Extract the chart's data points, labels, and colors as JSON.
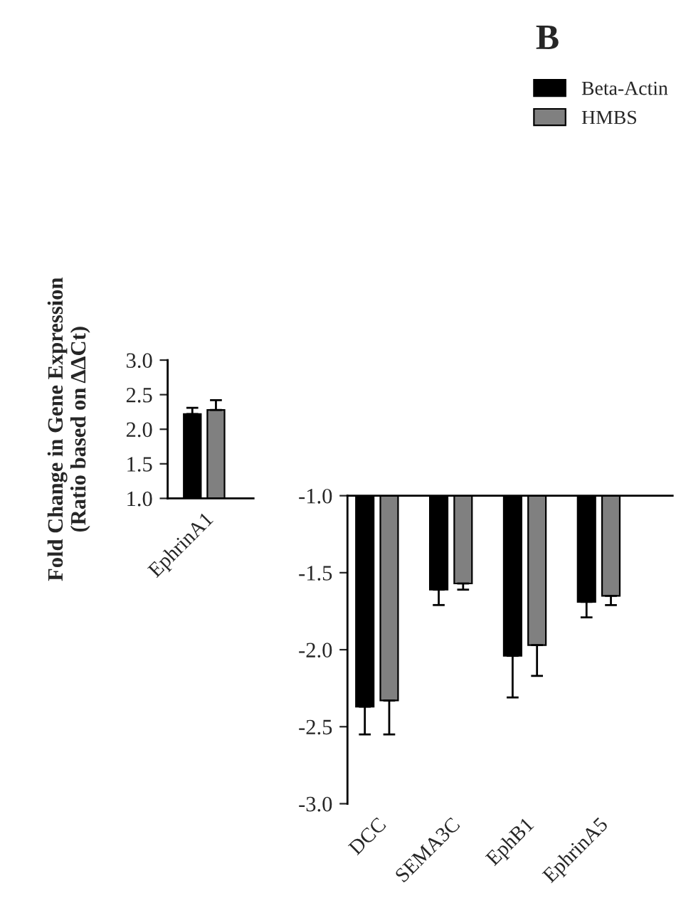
{
  "chart_data": [
    {
      "type": "bar",
      "ylabel": "Fold Change in Gene Expression\n(Ratio based on ΔΔCt)",
      "annotations": [
        "B"
      ],
      "categories": [
        "EphrinA1"
      ],
      "ylim": [
        1.0,
        3.0
      ],
      "yticks": [
        {
          "value": 1,
          "label": "1.0"
        },
        1.5,
        {
          "value": 2,
          "label": "2.0"
        },
        2.5,
        {
          "value": 3,
          "label": "3.0"
        }
      ],
      "legend": "top right",
      "series": [
        {
          "name": "Beta-Actin",
          "color": "#000000",
          "values": [
            2.22
          ],
          "errors": [
            [
              2.22,
              2.31
            ]
          ]
        },
        {
          "name": "HMBS",
          "color": "#808080",
          "values": [
            2.28
          ],
          "errors": [
            [
              2.28,
              2.42
            ]
          ]
        }
      ]
    },
    {
      "type": "bar",
      "categories": [
        "DCC",
        "SEMA3C",
        "EphB1",
        "EphrinA5"
      ],
      "ylim": [
        -3.0,
        -1.0
      ],
      "yticks": [
        {
          "value": -3,
          "label": "-3.0"
        },
        -2.5,
        {
          "value": -2,
          "label": "-2.0"
        },
        -1.5,
        {
          "value": -1,
          "label": "-1.0"
        }
      ],
      "series": [
        {
          "color": "#000000",
          "values": [
            -2.37,
            -1.61,
            -2.04,
            -1.69
          ],
          "errors": [
            [
              -2.55,
              -2.37
            ],
            [
              -1.71,
              -1.61
            ],
            [
              -2.31,
              -2.04
            ],
            [
              -1.79,
              -1.69
            ]
          ]
        },
        {
          "color": "#808080",
          "values": [
            -2.33,
            -1.57,
            -1.97,
            -1.65
          ],
          "errors": [
            [
              -2.55,
              -2.33
            ],
            [
              -1.61,
              -1.57
            ],
            [
              -2.17,
              -1.97
            ],
            [
              -1.71,
              -1.65
            ]
          ]
        }
      ]
    }
  ]
}
